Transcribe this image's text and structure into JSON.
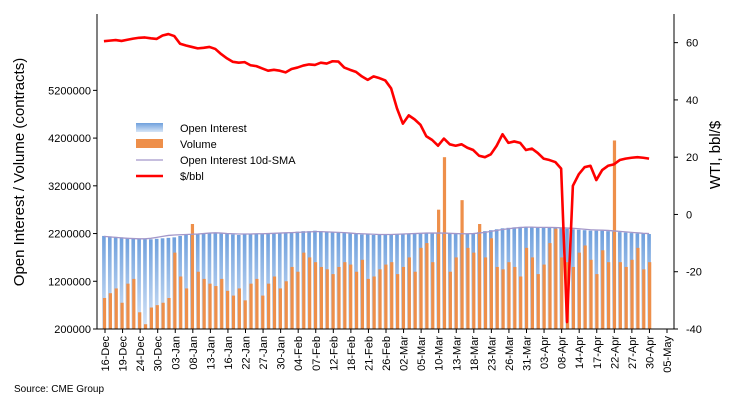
{
  "chart_data": {
    "type": "bar",
    "xlabel": "",
    "ylabel_left": "Open Interest / Volume (contracts)",
    "ylabel_right": "WTI, bbl/$",
    "ylim_left": [
      200000,
      6800000
    ],
    "ylim_right": [
      -40,
      70
    ],
    "yticks_left": [
      "200000",
      "1200000",
      "2200000",
      "3200000",
      "4200000",
      "5200000"
    ],
    "yticks_right": [
      "-40",
      "-20",
      "0",
      "20",
      "40",
      "60"
    ],
    "x_tick_labels": [
      "16-Dec",
      "19-Dec",
      "24-Dec",
      "30-Dec",
      "03-Jan",
      "08-Jan",
      "13-Jan",
      "16-Jan",
      "22-Jan",
      "27-Jan",
      "30-Jan",
      "04-Feb",
      "07-Feb",
      "12-Feb",
      "18-Feb",
      "21-Feb",
      "26-Feb",
      "02-Mar",
      "05-Mar",
      "10-Mar",
      "13-Mar",
      "18-Mar",
      "23-Mar",
      "26-Mar",
      "31-Mar",
      "03-Apr",
      "08-Apr",
      "14-Apr",
      "17-Apr",
      "22-Apr",
      "27-Apr",
      "30-Apr",
      "05-May"
    ],
    "grid": false,
    "legend_position": "center-left",
    "source": "Source: CME Group",
    "colors": {
      "open_interest": "#8fb6e6",
      "volume": "#ee8f4a",
      "sma": "#a397c9",
      "price": "#ff0000"
    },
    "series": [
      {
        "name": "Open Interest",
        "axis": "left",
        "values": [
          2150000,
          2140000,
          2130000,
          2120000,
          2110000,
          2100000,
          2090000,
          2080000,
          2080000,
          2090000,
          2100000,
          2110000,
          2120000,
          2150000,
          2170000,
          2180000,
          2190000,
          2200000,
          2210000,
          2220000,
          2200000,
          2190000,
          2180000,
          2170000,
          2180000,
          2180000,
          2190000,
          2190000,
          2190000,
          2200000,
          2210000,
          2220000,
          2230000,
          2240000,
          2250000,
          2250000,
          2260000,
          2250000,
          2240000,
          2230000,
          2220000,
          2210000,
          2200000,
          2190000,
          2180000,
          2180000,
          2170000,
          2170000,
          2170000,
          2180000,
          2180000,
          2190000,
          2190000,
          2200000,
          2200000,
          2210000,
          2210000,
          2220000,
          2210000,
          2200000,
          2190000,
          2190000,
          2200000,
          2210000,
          2230000,
          2250000,
          2270000,
          2290000,
          2310000,
          2320000,
          2330000,
          2340000,
          2340000,
          2330000,
          2320000,
          2330000,
          2330000,
          2320000,
          2310000,
          2300000,
          2290000,
          2280000,
          2270000,
          2260000,
          2260000,
          2260000,
          2250000,
          2240000,
          2230000,
          2220000,
          2210000,
          2200000,
          2200000,
          2190000
        ]
      },
      {
        "name": "Volume",
        "axis": "left",
        "values": [
          850000,
          950000,
          1050000,
          750000,
          1150000,
          1250000,
          550000,
          300000,
          650000,
          700000,
          750000,
          850000,
          1800000,
          1300000,
          1050000,
          2400000,
          1400000,
          1250000,
          1150000,
          1100000,
          1250000,
          1000000,
          900000,
          1050000,
          800000,
          1150000,
          1250000,
          900000,
          1150000,
          1300000,
          1050000,
          1200000,
          1500000,
          1400000,
          1800000,
          1700000,
          1600000,
          1500000,
          1450000,
          1350000,
          1500000,
          1600000,
          1550000,
          1400000,
          1650000,
          1250000,
          1300000,
          1450000,
          1550000,
          1600000,
          1350000,
          1500000,
          1700000,
          1400000,
          1900000,
          2000000,
          1600000,
          2700000,
          3800000,
          1400000,
          1700000,
          2900000,
          1900000,
          1800000,
          2400000,
          1700000,
          2100000,
          1500000,
          1450000,
          1600000,
          1500000,
          1300000,
          1900000,
          1700000,
          1350000,
          1550000,
          2000000,
          2300000,
          1700000,
          1600000,
          1500000,
          1800000,
          1950000,
          1650000,
          1350000,
          1850000,
          1600000,
          4150000,
          1600000,
          1500000,
          1650000,
          1900000,
          1450000,
          1600000
        ]
      },
      {
        "name": "Open Interest 10d-SMA",
        "axis": "left",
        "values": [
          2140000,
          2130000,
          2120000,
          2110000,
          2100000,
          2095000,
          2090000,
          2090000,
          2100000,
          2120000,
          2140000,
          2160000,
          2170000,
          2175000,
          2180000,
          2185000,
          2190000,
          2200000,
          2210000,
          2215000,
          2210000,
          2200000,
          2195000,
          2190000,
          2190000,
          2190000,
          2195000,
          2195000,
          2200000,
          2205000,
          2210000,
          2215000,
          2220000,
          2225000,
          2230000,
          2235000,
          2240000,
          2240000,
          2235000,
          2230000,
          2225000,
          2220000,
          2210000,
          2200000,
          2195000,
          2190000,
          2185000,
          2180000,
          2180000,
          2180000,
          2185000,
          2190000,
          2195000,
          2200000,
          2205000,
          2210000,
          2210000,
          2210000,
          2210000,
          2205000,
          2200000,
          2195000,
          2195000,
          2200000,
          2210000,
          2225000,
          2245000,
          2265000,
          2285000,
          2300000,
          2315000,
          2325000,
          2335000,
          2335000,
          2330000,
          2330000,
          2330000,
          2325000,
          2320000,
          2315000,
          2310000,
          2300000,
          2290000,
          2280000,
          2275000,
          2270000,
          2265000,
          2255000,
          2245000,
          2235000,
          2225000,
          2215000,
          2205000,
          2200000
        ]
      },
      {
        "name": "$/bbl",
        "axis": "right",
        "values": [
          60.5,
          60.7,
          60.9,
          60.6,
          61.0,
          61.4,
          61.7,
          61.8,
          61.5,
          61.3,
          62.5,
          63.0,
          62.3,
          59.6,
          59.0,
          58.5,
          58.0,
          58.2,
          58.5,
          57.8,
          56.0,
          54.5,
          53.3,
          53.0,
          53.2,
          52.1,
          51.8,
          51.0,
          50.2,
          50.5,
          50.2,
          49.6,
          50.8,
          51.3,
          52.0,
          52.4,
          52.2,
          53.0,
          52.7,
          53.5,
          53.4,
          51.3,
          50.5,
          49.8,
          48.2,
          47.0,
          48.2,
          47.6,
          46.8,
          44.0,
          37.0,
          31.7,
          34.6,
          33.2,
          31.3,
          27.3,
          26.0,
          24.0,
          26.5,
          24.5,
          24.0,
          24.5,
          23.3,
          22.5,
          20.5,
          20.0,
          21.0,
          24.0,
          28.0,
          25.0,
          25.5,
          25.0,
          22.5,
          23.0,
          21.5,
          19.5,
          19.0,
          18.3,
          16.0,
          -37.6,
          10.0,
          14.0,
          16.5,
          17.0,
          12.0,
          15.5,
          17.0,
          17.5,
          19.0,
          19.5,
          19.8,
          20.0,
          19.8,
          19.5
        ]
      }
    ]
  }
}
